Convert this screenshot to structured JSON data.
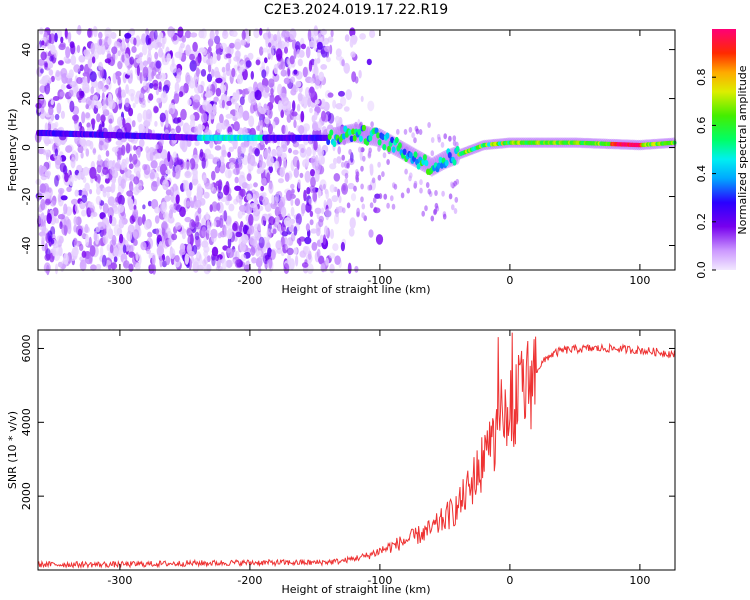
{
  "title": "C2E3.2024.019.17.22.R19",
  "chart_data": [
    {
      "type": "heatmap",
      "xlabel": "Height of straight line (km)",
      "ylabel": "Frequency (Hz)",
      "xlim": [
        -363,
        127
      ],
      "ylim": [
        -50,
        48
      ],
      "xticks": [
        -300,
        -200,
        -100,
        0,
        100
      ],
      "yticks": [
        -40,
        -20,
        0,
        20,
        40
      ],
      "xtick_labels": [
        "-300",
        "-200",
        "-100",
        "0",
        "100"
      ],
      "ytick_labels": [
        "-40",
        "-20",
        "0",
        "20",
        "40"
      ],
      "colorbar": {
        "label": "Normalized spectral amplitude",
        "range": [
          0,
          1
        ],
        "ticks": [
          0.0,
          0.2,
          0.4,
          0.6,
          0.8
        ],
        "tick_labels": [
          "0.0",
          "0.2",
          "0.4",
          "0.6",
          "0.8"
        ]
      },
      "signal_track": {
        "x": [
          -363,
          -300,
          -240,
          -200,
          -140,
          -120,
          -100,
          -80,
          -60,
          -50,
          -40,
          -20,
          0,
          50,
          100,
          127
        ],
        "y": [
          6,
          5,
          4,
          4,
          4,
          6,
          4,
          -2,
          -8,
          -5,
          -3,
          1,
          2,
          2,
          1,
          2
        ]
      },
      "grid": false
    },
    {
      "type": "line",
      "xlabel": "Height of straight line (km)",
      "ylabel": "SNR (10 * v/v)",
      "xlim": [
        -363,
        127
      ],
      "ylim": [
        0,
        6500
      ],
      "xticks": [
        -300,
        -200,
        -100,
        0,
        100
      ],
      "yticks": [
        2000,
        4000,
        6000
      ],
      "xtick_labels": [
        "-300",
        "-200",
        "-100",
        "0",
        "100"
      ],
      "ytick_labels": [
        "2000",
        "4000",
        "6000"
      ],
      "series_color": "#ee3333",
      "x": [
        -363,
        -300,
        -250,
        -200,
        -150,
        -130,
        -110,
        -100,
        -90,
        -80,
        -70,
        -60,
        -50,
        -40,
        -30,
        -20,
        -15,
        -10,
        -5,
        0,
        10,
        20,
        30,
        40,
        60,
        80,
        100,
        127
      ],
      "y": [
        150,
        150,
        180,
        200,
        200,
        240,
        380,
        520,
        650,
        800,
        950,
        1100,
        1400,
        1700,
        2300,
        3000,
        3400,
        3800,
        4000,
        4200,
        4800,
        5400,
        5800,
        5950,
        6000,
        6000,
        5950,
        5850
      ],
      "grid": false
    }
  ]
}
